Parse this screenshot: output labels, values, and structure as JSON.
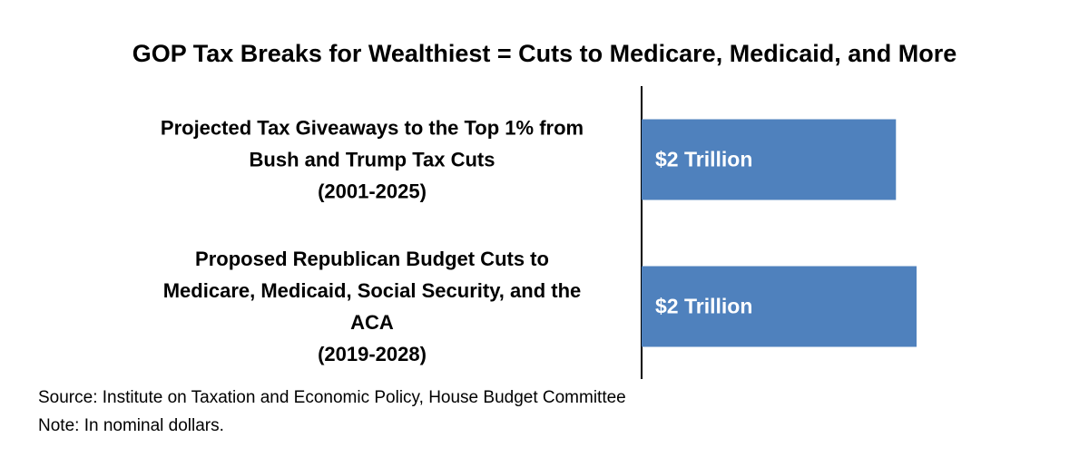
{
  "chart_data": {
    "type": "hbar",
    "title": "GOP Tax Breaks for Wealthiest = Cuts to Medicare, Medicaid, and More",
    "categories": [
      "Projected Tax Giveaways to the Top 1% from\nBush and Trump Tax Cuts\n(2001-2025)",
      "Proposed Republican Budget Cuts to\nMedicare, Medicaid, Social Security, and the\nACA\n(2019-2028)"
    ],
    "values": [
      1.85,
      2
    ],
    "value_labels": [
      "$2 Trillion",
      "$2 Trillion"
    ],
    "color": "#4f81bd",
    "source": "Source: Institute on Taxation and Economic Policy, House Budget Committee",
    "note": "Note: In nominal dollars."
  }
}
